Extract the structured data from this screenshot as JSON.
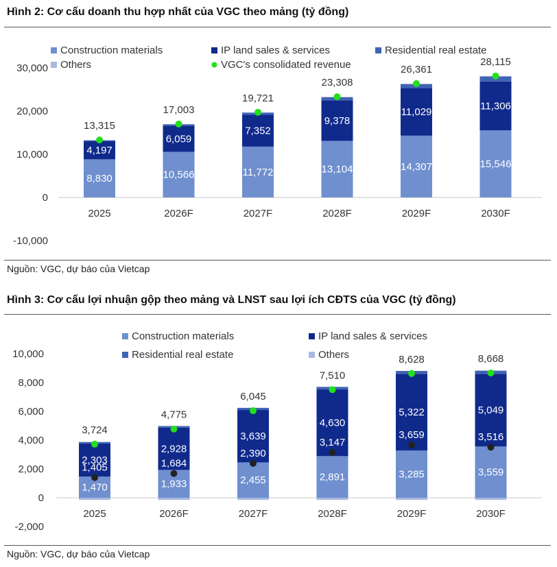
{
  "figure1": {
    "title": "Hình 2: Cơ cấu doanh thu hợp nhất của VGC theo mảng (tỷ đồng)",
    "source": "Nguồn: VGC, dự báo của Vietcap"
  },
  "figure2": {
    "title": "Hình 3: Cơ cấu lợi nhuận gộp theo mảng và LNST sau lợi ích CĐTS của VGC (tỷ đồng)",
    "source": "Nguồn: VGC, dự báo của Vietcap"
  },
  "colors": {
    "construction": "#6f8fcf",
    "ip_land": "#102a8c",
    "residential": "#3f63b5",
    "others": "#a9b9de",
    "revenue_dot": "#22e01a",
    "npat_dot": "#222222"
  },
  "chart_data": [
    {
      "type": "bar",
      "stacked": true,
      "categories": [
        "2025",
        "2026F",
        "2027F",
        "2028F",
        "2029F",
        "2030F"
      ],
      "ylim": [
        -10000,
        30000
      ],
      "yticks": [
        "-10,000",
        "0",
        "10,000",
        "20,000",
        "30,000"
      ],
      "ytick_values": [
        -10000,
        0,
        10000,
        20000,
        30000
      ],
      "legend": "top",
      "grid": false,
      "series": [
        {
          "name": "Construction materials",
          "color_key": "construction",
          "values": [
            8830,
            10566,
            11772,
            13104,
            14307,
            15546
          ],
          "labels": [
            "8,830",
            "10,566",
            "11,772",
            "13,104",
            "14,307",
            "15,546"
          ]
        },
        {
          "name": "IP land sales & services",
          "color_key": "ip_land",
          "values": [
            4197,
            6059,
            7352,
            9378,
            11029,
            11306
          ],
          "labels": [
            "4,197",
            "6,059",
            "7,352",
            "9,378",
            "11,029",
            "11,306"
          ]
        },
        {
          "name": "Residential real estate",
          "color_key": "residential",
          "values": [
            190,
            280,
            480,
            700,
            900,
            1150
          ],
          "labels": [
            "",
            "",
            "",
            "",
            "",
            ""
          ]
        },
        {
          "name": "Others",
          "color_key": "others",
          "values": [
            98,
            98,
            117,
            126,
            125,
            113
          ],
          "labels": [
            "",
            "",
            "",
            "",
            "",
            ""
          ]
        }
      ],
      "legend_order": [
        "Construction materials",
        "IP land sales & services",
        "Residential real estate",
        "Others",
        "VGC's consolidated revenue"
      ],
      "points": [
        {
          "name": "VGC's consolidated revenue",
          "color_key": "revenue_dot",
          "values": [
            13315,
            17003,
            19721,
            23308,
            26361,
            28115
          ],
          "labels": [
            "13,315",
            "17,003",
            "19,721",
            "23,308",
            "26,361",
            "28,115"
          ]
        }
      ]
    },
    {
      "type": "bar",
      "stacked": true,
      "categories": [
        "2025",
        "2026F",
        "2027F",
        "2028F",
        "2029F",
        "2030F"
      ],
      "ylim": [
        -2000,
        10000
      ],
      "yticks": [
        "-2,000",
        "0",
        "2,000",
        "4,000",
        "6,000",
        "8,000",
        "10,000"
      ],
      "ytick_values": [
        -2000,
        0,
        2000,
        4000,
        6000,
        8000,
        10000
      ],
      "legend": "top",
      "grid": false,
      "series": [
        {
          "name": "Construction materials",
          "color_key": "construction",
          "values": [
            1470,
            1933,
            2455,
            2891,
            3285,
            3559
          ],
          "labels": [
            "1,470",
            "1,933",
            "2,455",
            "2,891",
            "3,285",
            "3,559"
          ]
        },
        {
          "name": "IP land sales & services",
          "color_key": "ip_land",
          "values": [
            2303,
            2928,
            3639,
            4630,
            5322,
            5049
          ],
          "labels": [
            "2,303",
            "2,928",
            "3,639",
            "4,630",
            "5,322",
            "5,049"
          ]
        },
        {
          "name": "Residential real estate",
          "color_key": "residential",
          "values": [
            100,
            120,
            150,
            180,
            200,
            220
          ],
          "labels": [
            "",
            "",
            "",
            "",
            "",
            ""
          ]
        },
        {
          "name": "Others",
          "color_key": "others",
          "values": [
            -150,
            -150,
            -150,
            -150,
            -150,
            -150
          ],
          "labels": [
            "",
            "",
            "",
            "",
            "",
            ""
          ]
        }
      ],
      "legend_order": [
        "Construction materials",
        "IP land sales & services",
        "Residential real estate",
        "Others"
      ],
      "points": [
        {
          "name": "",
          "color_key": "revenue_dot",
          "values": [
            3724,
            4775,
            6045,
            7510,
            8628,
            8668
          ],
          "labels": [
            "3,724",
            "4,775",
            "6,045",
            "7,510",
            "8,628",
            "8,668"
          ]
        },
        {
          "name": "",
          "color_key": "npat_dot",
          "values": [
            1405,
            1684,
            2390,
            3147,
            3659,
            3516
          ],
          "labels": [
            "1,405",
            "1,684",
            "2,390",
            "3,147",
            "3,659",
            "3,516"
          ]
        }
      ]
    }
  ]
}
